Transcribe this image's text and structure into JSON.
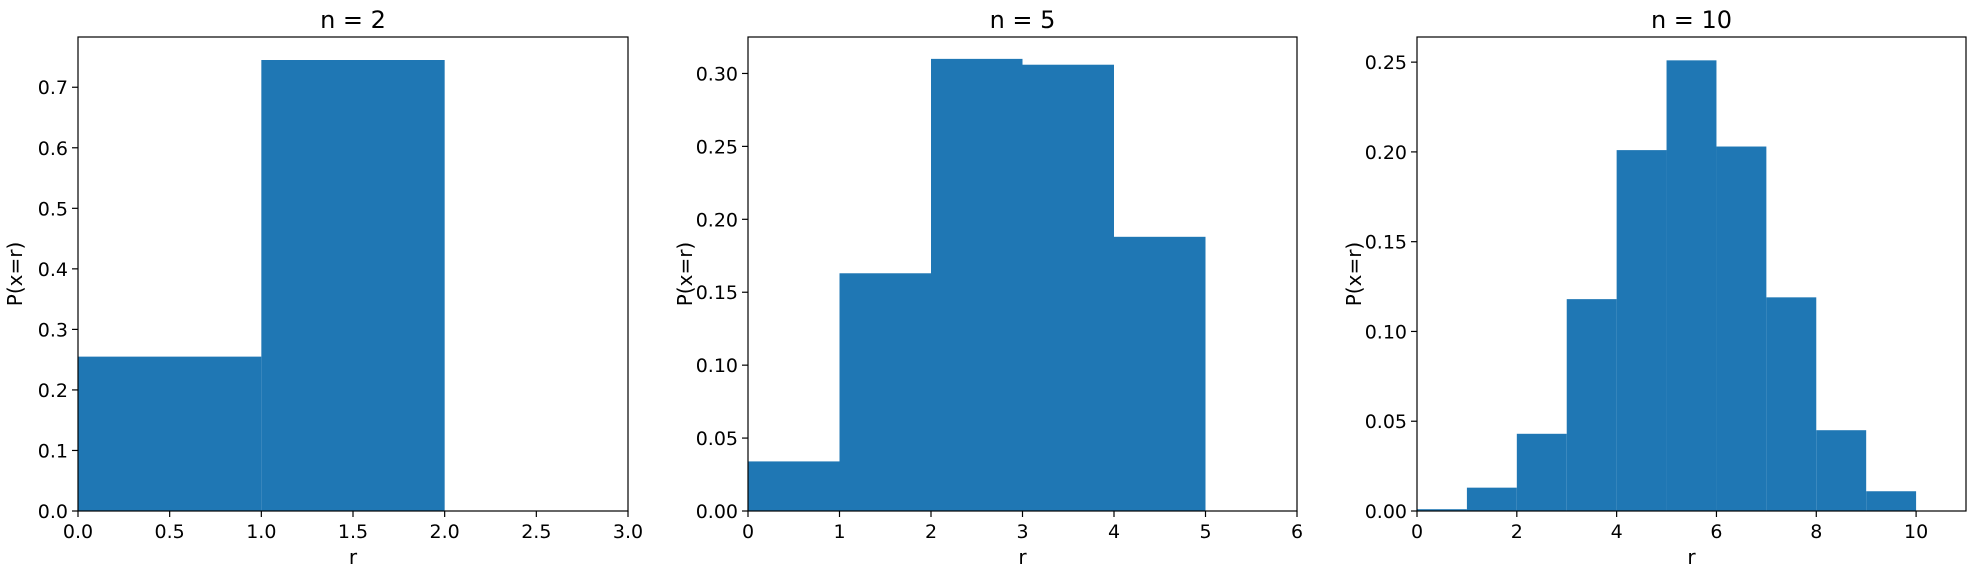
{
  "figure": {
    "bar_color": "#1f77b4",
    "background": "#ffffff",
    "axis_color": "#000000"
  },
  "chart_data": [
    {
      "type": "bar",
      "title": "n = 2",
      "xlabel": "r",
      "ylabel": "P(x=r)",
      "bin_edges": [
        0,
        1,
        2
      ],
      "values": [
        0.255,
        0.745
      ],
      "xlim": [
        0,
        3
      ],
      "ylim": [
        0,
        0.783
      ],
      "xticks": [
        0,
        0.5,
        1,
        1.5,
        2,
        2.5,
        3
      ],
      "xtick_labels": [
        "0.0",
        "0.5",
        "1.0",
        "1.5",
        "2.0",
        "2.5",
        "3.0"
      ],
      "yticks": [
        0,
        0.1,
        0.2,
        0.3,
        0.4,
        0.5,
        0.6,
        0.7
      ],
      "ytick_labels": [
        "0.0",
        "0.1",
        "0.2",
        "0.3",
        "0.4",
        "0.5",
        "0.6",
        "0.7"
      ],
      "grid": false
    },
    {
      "type": "bar",
      "title": "n = 5",
      "xlabel": "r",
      "ylabel": "P(x=r)",
      "bin_edges": [
        0,
        1,
        2,
        3,
        4,
        5
      ],
      "values": [
        0.034,
        0.163,
        0.31,
        0.306,
        0.188
      ],
      "xlim": [
        0,
        6
      ],
      "ylim": [
        0,
        0.325
      ],
      "xticks": [
        0,
        1,
        2,
        3,
        4,
        5,
        6
      ],
      "xtick_labels": [
        "0",
        "1",
        "2",
        "3",
        "4",
        "5",
        "6"
      ],
      "yticks": [
        0,
        0.05,
        0.1,
        0.15,
        0.2,
        0.25,
        0.3
      ],
      "ytick_labels": [
        "0.00",
        "0.05",
        "0.10",
        "0.15",
        "0.20",
        "0.25",
        "0.30"
      ],
      "grid": false
    },
    {
      "type": "bar",
      "title": "n = 10",
      "xlabel": "r",
      "ylabel": "P(x=r)",
      "bin_edges": [
        0,
        1,
        2,
        3,
        4,
        5,
        6,
        7,
        8,
        9,
        10
      ],
      "values": [
        0.001,
        0.013,
        0.043,
        0.118,
        0.201,
        0.251,
        0.203,
        0.119,
        0.045,
        0.011
      ],
      "xlim": [
        0,
        11
      ],
      "ylim": [
        0,
        0.264
      ],
      "xticks": [
        0,
        2,
        4,
        6,
        8,
        10
      ],
      "xtick_labels": [
        "0",
        "2",
        "4",
        "6",
        "8",
        "10"
      ],
      "yticks": [
        0,
        0.05,
        0.1,
        0.15,
        0.2,
        0.25
      ],
      "ytick_labels": [
        "0.00",
        "0.05",
        "0.10",
        "0.15",
        "0.20",
        "0.25"
      ],
      "grid": false
    }
  ]
}
